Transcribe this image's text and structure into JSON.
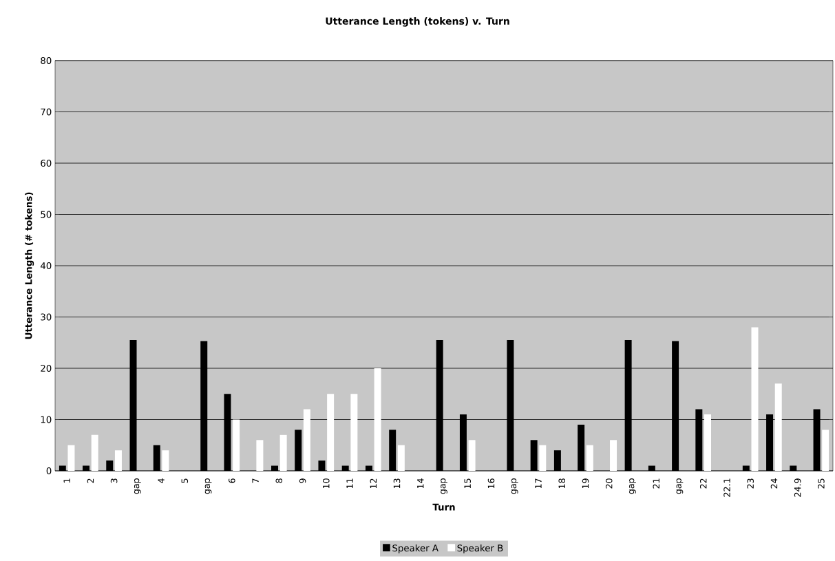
{
  "chart_data": {
    "type": "bar",
    "title": "Utterance Length (tokens) v. Turn",
    "xlabel": "Turn",
    "ylabel": "Utterance Length (# tokens)",
    "categories": [
      "1",
      "2",
      "3",
      "gap",
      "4",
      "5",
      "gap",
      "6",
      "7",
      "8",
      "9",
      "10",
      "11",
      "12",
      "13",
      "14",
      "gap",
      "15",
      "16",
      "gap",
      "17",
      "18",
      "19",
      "20",
      "gap",
      "21",
      "gap",
      "22",
      "22.1",
      "23",
      "24",
      "24.9",
      "25"
    ],
    "series": [
      {
        "name": "Speaker A",
        "color": "#000000",
        "values": [
          1,
          1,
          2,
          25.5,
          5,
          0,
          25.3,
          15,
          0,
          1,
          8,
          2,
          1,
          1,
          8,
          0,
          25.5,
          11,
          0,
          25.5,
          6,
          4,
          9,
          0,
          25.5,
          1,
          25.3,
          12,
          0,
          1,
          11,
          1,
          12
        ]
      },
      {
        "name": "Speaker B",
        "color": "#ffffff",
        "values": [
          5,
          7,
          4,
          0,
          4,
          0,
          0,
          10,
          6,
          7,
          12,
          15,
          15,
          20,
          5,
          0,
          0,
          6,
          0,
          0,
          5,
          0,
          5,
          6,
          0,
          0,
          0,
          11,
          0,
          28,
          17,
          0,
          8
        ]
      }
    ],
    "ylim": [
      0,
      80
    ],
    "yticks": [
      0,
      10,
      20,
      30,
      40,
      50,
      60,
      70,
      80
    ],
    "grid": "y",
    "legend": "bottom"
  }
}
